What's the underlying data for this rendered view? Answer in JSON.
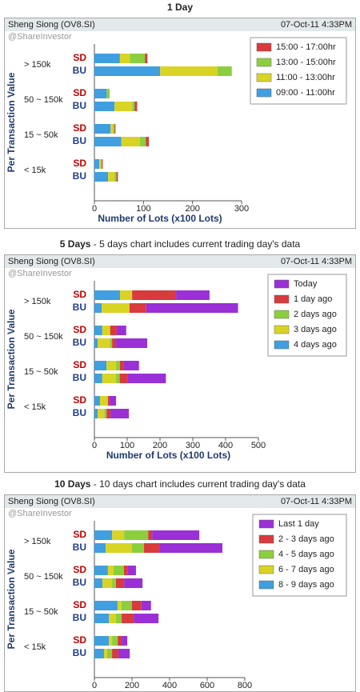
{
  "chart_data": [
    {
      "type": "bar",
      "title": "1 Day",
      "stock": "Sheng Siong (OV8.SI)",
      "timestamp": "07-Oct-11 4:33PM",
      "watermark": "@ShareInvestor",
      "ylabel": "Per Transaction Value",
      "xlabel": "Number of Lots (x100 Lots)",
      "groups": [
        "> 150k",
        "50 ~ 150k",
        "15 ~ 50k",
        "< 15k"
      ],
      "categories": [
        "SD",
        "BU",
        "SD",
        "BU",
        "SD",
        "BU",
        "SD",
        "BU"
      ],
      "xlim": [
        0,
        300
      ],
      "xticks": [
        0,
        100,
        200,
        300
      ],
      "series": [
        {
          "name": "09:00 - 11:00hr",
          "color": "#3f9fe0",
          "values": [
            52,
            134,
            25,
            41,
            33,
            55,
            10,
            28
          ]
        },
        {
          "name": "11:00 - 13:00hr",
          "color": "#d9d424",
          "values": [
            20,
            117,
            0,
            36,
            5,
            38,
            3,
            13
          ]
        },
        {
          "name": "13:00 - 15:00hr",
          "color": "#8ccf3c",
          "values": [
            31,
            29,
            6,
            5,
            3,
            12,
            2,
            4
          ]
        },
        {
          "name": "15:00 - 17:00hr",
          "color": "#d93a3c",
          "values": [
            5,
            0,
            0,
            5,
            2,
            6,
            2,
            3
          ]
        }
      ]
    },
    {
      "type": "bar",
      "title": "5 Days",
      "subtitle": " - 5 days chart includes current trading day's data",
      "stock": "Sheng Siong (OV8.SI)",
      "timestamp": "07-Oct-11 4:33PM",
      "watermark": "@ShareInvestor",
      "ylabel": "Per Transaction Value",
      "xlabel": "Number of Lots (x100 Lots)",
      "groups": [
        "> 150k",
        "50 ~ 150k",
        "15 ~ 50k",
        "< 15k"
      ],
      "categories": [
        "SD",
        "BU",
        "SD",
        "BU",
        "SD",
        "BU",
        "SD",
        "BU"
      ],
      "xlim": [
        0,
        500
      ],
      "xticks": [
        0,
        100,
        200,
        300,
        400,
        500
      ],
      "series": [
        {
          "name": "4 days ago",
          "color": "#3f9fe0",
          "values": [
            78,
            22,
            24,
            10,
            37,
            24,
            17,
            10
          ]
        },
        {
          "name": "3 days ago",
          "color": "#d9d424",
          "values": [
            37,
            85,
            24,
            37,
            29,
            41,
            24,
            20
          ]
        },
        {
          "name": "2 days ago",
          "color": "#8ccf3c",
          "values": [
            0,
            0,
            0,
            7,
            12,
            12,
            0,
            7
          ]
        },
        {
          "name": "1 day ago",
          "color": "#d93a3c",
          "values": [
            134,
            51,
            20,
            12,
            12,
            24,
            5,
            12
          ]
        },
        {
          "name": "Today",
          "color": "#9a30d6",
          "values": [
            102,
            280,
            29,
            95,
            46,
            117,
            20,
            56
          ]
        }
      ]
    },
    {
      "type": "bar",
      "title": "10 Days",
      "subtitle": " - 10 days chart includes current trading day's data",
      "stock": "Sheng Siong (OV8.SI)",
      "timestamp": "07-Oct-11 4:33PM",
      "watermark": "@ShareInvestor",
      "ylabel": "Per Transaction Value",
      "groups": [
        "> 150k",
        "50 ~ 150k",
        "15 ~ 50k",
        "< 15k"
      ],
      "categories": [
        "SD",
        "BU",
        "SD",
        "BU",
        "SD",
        "BU",
        "SD",
        "BU"
      ],
      "xlim": [
        0,
        800
      ],
      "xticks": [
        0,
        200,
        400,
        600,
        800
      ],
      "series": [
        {
          "name": "8 - 9 days ago",
          "color": "#3f9fe0",
          "values": [
            94,
            60,
            72,
            43,
            123,
            77,
            77,
            51
          ]
        },
        {
          "name": "6 - 7 days ago",
          "color": "#d9d424",
          "values": [
            64,
            140,
            30,
            51,
            21,
            38,
            17,
            17
          ]
        },
        {
          "name": "4 - 5 days ago",
          "color": "#8ccf3c",
          "values": [
            128,
            64,
            55,
            21,
            55,
            30,
            30,
            26
          ]
        },
        {
          "name": "2 - 3 days ago",
          "color": "#d93a3c",
          "values": [
            21,
            85,
            21,
            43,
            51,
            64,
            21,
            34
          ]
        },
        {
          "name": "Last 1 day",
          "color": "#9a30d6",
          "values": [
            251,
            332,
            43,
            98,
            51,
            132,
            30,
            60
          ]
        }
      ]
    }
  ]
}
